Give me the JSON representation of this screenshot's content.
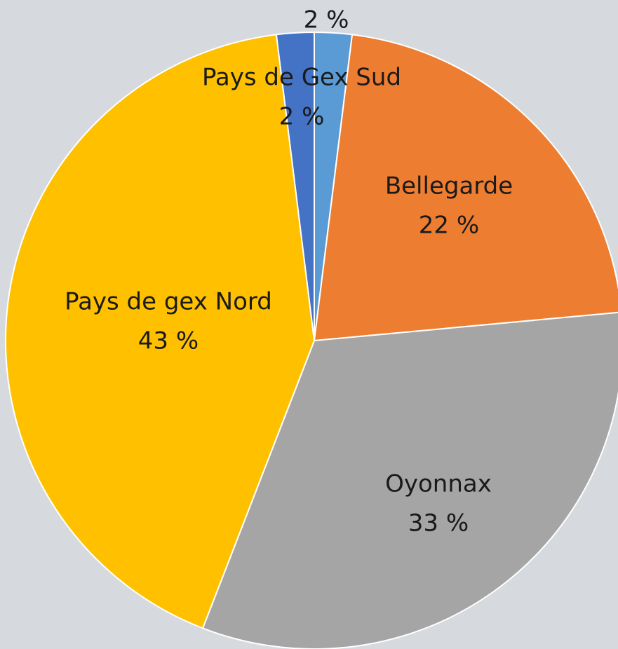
{
  "chart_data": {
    "type": "pie",
    "categories": [
      null,
      "Bellegarde",
      "Oyonnax",
      "Pays de gex Nord",
      "Pays de Gex Sud"
    ],
    "values": [
      2,
      22,
      33,
      43,
      2
    ],
    "value_labels": [
      "2 %",
      "22 %",
      "33 %",
      "43 %",
      "2 %"
    ],
    "colors": [
      "#5b9bd5",
      "#ed7d31",
      "#a5a5a5",
      "#ffc000",
      "#4472c4"
    ]
  }
}
